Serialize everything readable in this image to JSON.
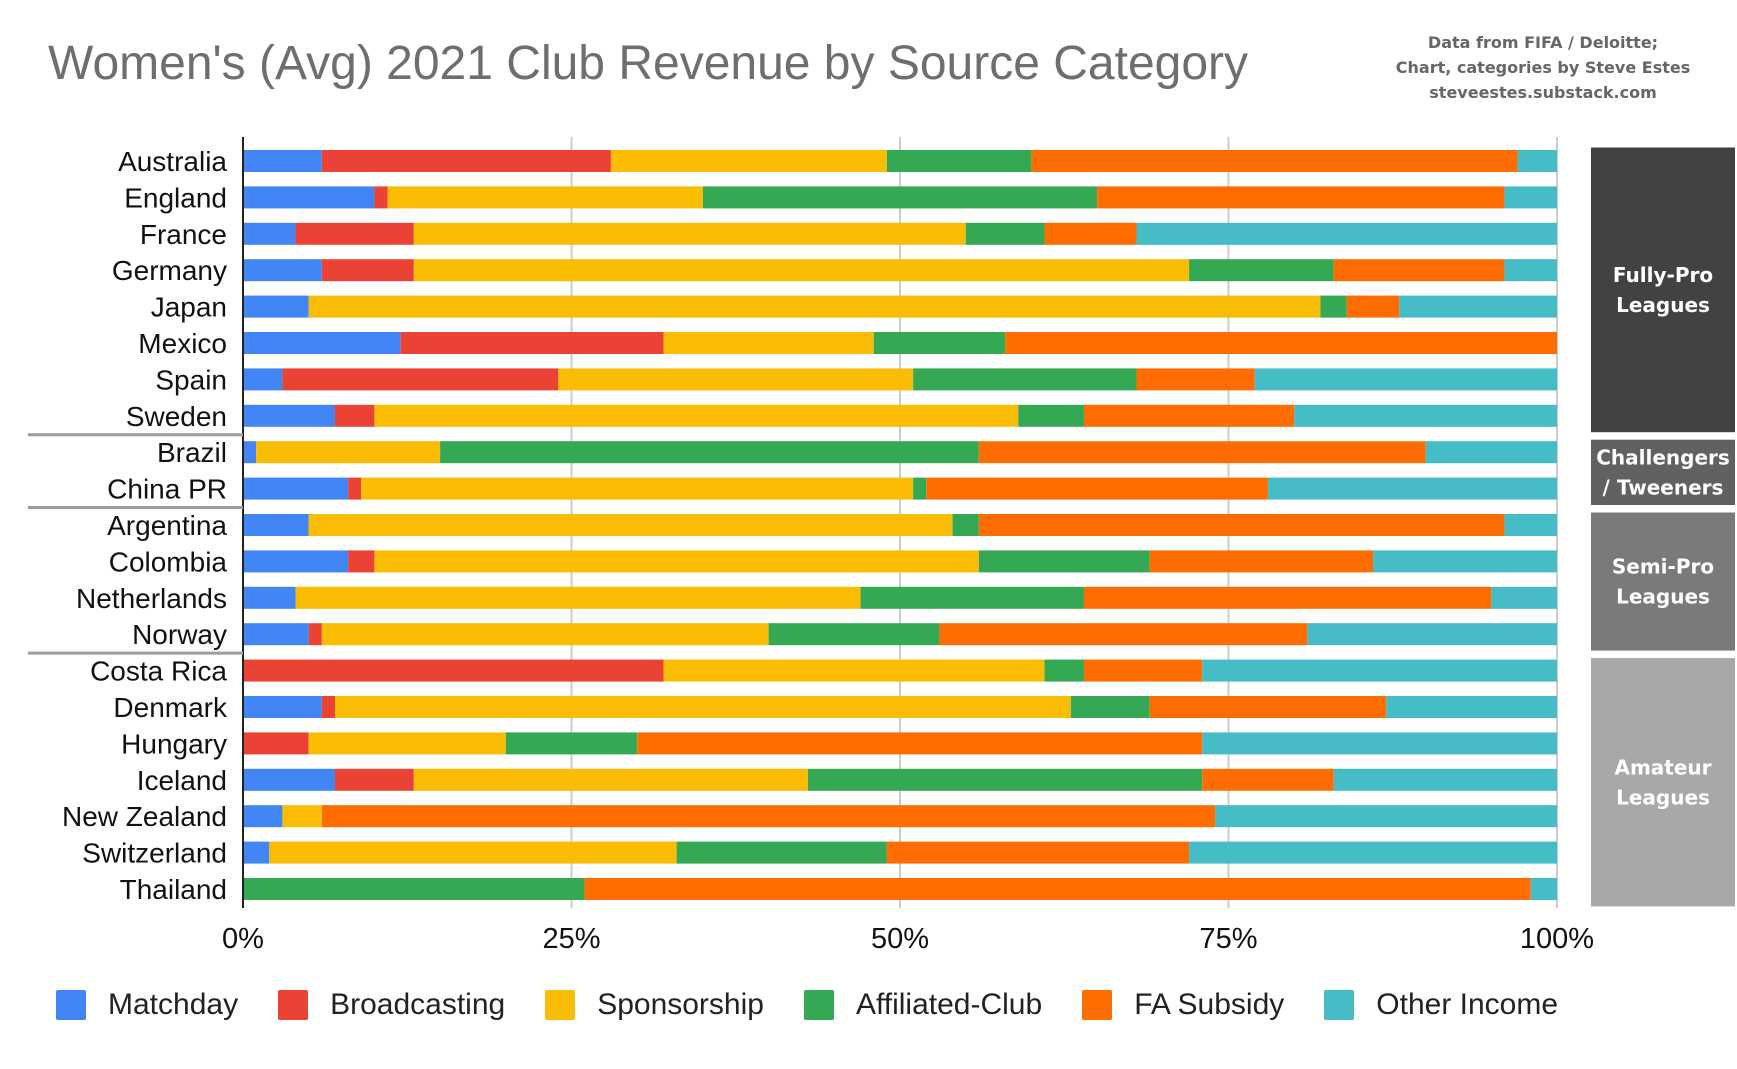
{
  "title": "Women's (Avg) 2021 Club Revenue by Source Category",
  "source_lines": [
    "Data from FIFA / Deloitte;",
    "Chart, categories by Steve Estes",
    "steveestes.substack.com"
  ],
  "chart_data": {
    "type": "bar",
    "orientation": "horizontal",
    "stacked": "percent",
    "title": "Women's (Avg) 2021 Club Revenue by Source Category",
    "xlabel": "",
    "ylabel": "",
    "xlim": [
      0,
      100
    ],
    "x_ticks": [
      "0%",
      "25%",
      "50%",
      "75%",
      "100%"
    ],
    "grid": true,
    "legend_position": "bottom",
    "categories": [
      "Australia",
      "England",
      "France",
      "Germany",
      "Japan",
      "Mexico",
      "Spain",
      "Sweden",
      "Brazil",
      "China PR",
      "Argentina",
      "Colombia",
      "Netherlands",
      "Norway",
      "Costa Rica",
      "Denmark",
      "Hungary",
      "Iceland",
      "New Zealand",
      "Switzerland",
      "Thailand"
    ],
    "series": [
      {
        "name": "Matchday",
        "color": "#4285F4",
        "values": [
          6,
          10,
          4,
          6,
          5,
          12,
          3,
          7,
          1,
          8,
          5,
          8,
          4,
          5,
          0,
          6,
          0,
          7,
          3,
          2,
          0
        ]
      },
      {
        "name": "Broadcasting",
        "color": "#EA4335",
        "values": [
          22,
          1,
          9,
          7,
          0,
          20,
          21,
          3,
          0,
          1,
          0,
          2,
          0,
          1,
          32,
          1,
          5,
          6,
          0,
          0,
          0
        ]
      },
      {
        "name": "Sponsorship",
        "color": "#FBBC04",
        "values": [
          21,
          24,
          42,
          59,
          77,
          16,
          27,
          49,
          14,
          42,
          49,
          46,
          43,
          34,
          29,
          56,
          15,
          30,
          3,
          31,
          0
        ]
      },
      {
        "name": "Affiliated-Club",
        "color": "#34A853",
        "values": [
          11,
          30,
          6,
          11,
          2,
          10,
          17,
          5,
          41,
          1,
          2,
          13,
          17,
          13,
          3,
          6,
          10,
          30,
          0,
          16,
          26
        ]
      },
      {
        "name": "FA Subsidy",
        "color": "#FF6D01",
        "values": [
          37,
          31,
          7,
          13,
          4,
          42,
          9,
          16,
          34,
          26,
          40,
          17,
          31,
          28,
          9,
          18,
          43,
          10,
          68,
          23,
          72
        ]
      },
      {
        "name": "Other Income",
        "color": "#46BDC6",
        "values": [
          3,
          4,
          32,
          4,
          12,
          0,
          23,
          20,
          10,
          22,
          4,
          14,
          5,
          19,
          27,
          13,
          27,
          17,
          26,
          28,
          2
        ]
      }
    ],
    "groups": [
      {
        "label_lines": [
          "Fully-Pro",
          "Leagues"
        ],
        "start": 0,
        "end": 7,
        "color": "#424242"
      },
      {
        "label_lines": [
          "Challengers",
          "/ Tweeners"
        ],
        "start": 8,
        "end": 9,
        "color": "#616161"
      },
      {
        "label_lines": [
          "Semi-Pro",
          "Leagues"
        ],
        "start": 10,
        "end": 13,
        "color": "#7a7a7a"
      },
      {
        "label_lines": [
          "Amateur",
          "Leagues"
        ],
        "start": 14,
        "end": 20,
        "color": "#a8a8a8"
      }
    ]
  }
}
